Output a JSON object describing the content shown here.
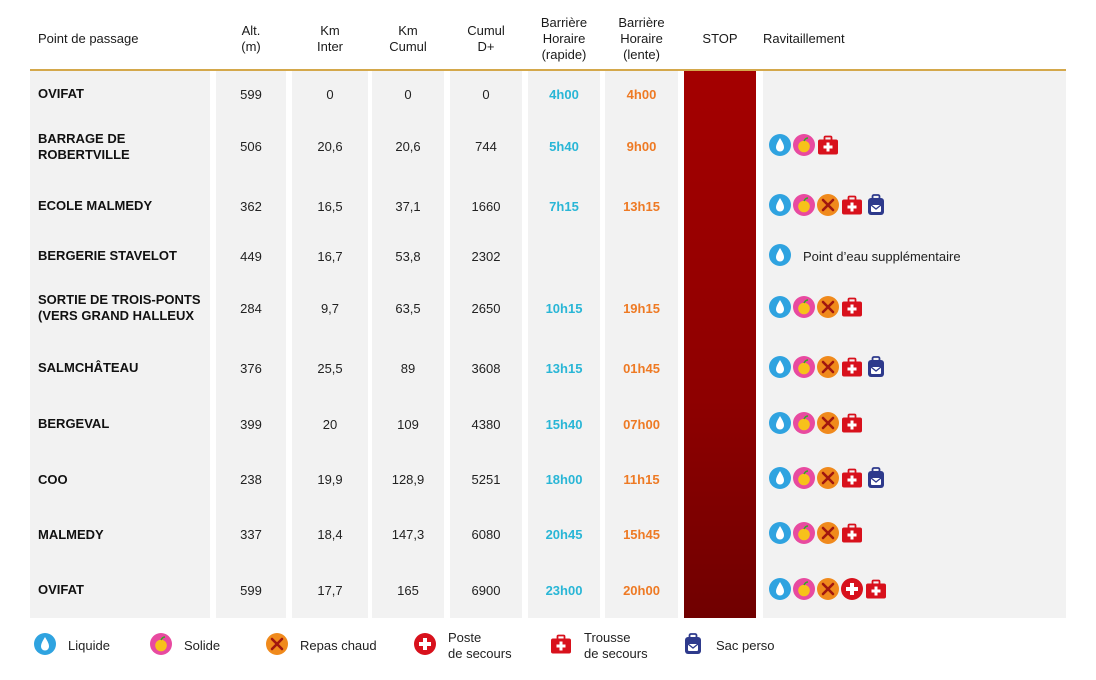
{
  "headers": {
    "point": "Point de passage",
    "alt": "Alt.\n(m)",
    "km_inter": "Km\nInter",
    "km_cumul": "Km\nCumul",
    "cumul_d": "Cumul\nD+",
    "barriere_rapide": "Barrière\nHoraire\n(rapide)",
    "barriere_lente": "Barrière\nHoraire\n(lente)",
    "stop": "STOP",
    "ravitaillement": "Ravitaillement"
  },
  "rows": [
    {
      "name": "OVIFAT",
      "alt": "599",
      "km_inter": "0",
      "km_cumul": "0",
      "cumul_d": "0",
      "rapide": "4h00",
      "lente": "4h00",
      "icons": [],
      "extra": ""
    },
    {
      "name": "BARRAGE DE\nROBERTVILLE",
      "alt": "506",
      "km_inter": "20,6",
      "km_cumul": "20,6",
      "cumul_d": "744",
      "rapide": "5h40",
      "lente": "9h00",
      "icons": [
        "liquide",
        "solide",
        "trousse"
      ],
      "extra": ""
    },
    {
      "name": "ECOLE MALMEDY",
      "alt": "362",
      "km_inter": "16,5",
      "km_cumul": "37,1",
      "cumul_d": "1660",
      "rapide": "7h15",
      "lente": "13h15",
      "icons": [
        "liquide",
        "solide",
        "repas",
        "trousse",
        "sac"
      ],
      "extra": ""
    },
    {
      "name": "BERGERIE STAVELOT",
      "alt": "449",
      "km_inter": "16,7",
      "km_cumul": "53,8",
      "cumul_d": "2302",
      "rapide": "",
      "lente": "",
      "icons": [
        "liquide"
      ],
      "extra": "Point d’eau supplémentaire"
    },
    {
      "name": "SORTIE DE TROIS-PONTS\n(VERS GRAND HALLEUX",
      "alt": "284",
      "km_inter": "9,7",
      "km_cumul": "63,5",
      "cumul_d": "2650",
      "rapide": "10h15",
      "lente": "19h15",
      "icons": [
        "liquide",
        "solide",
        "repas",
        "trousse"
      ],
      "extra": ""
    },
    {
      "name": "SALMCHÂTEAU",
      "alt": "376",
      "km_inter": "25,5",
      "km_cumul": "89",
      "cumul_d": "3608",
      "rapide": "13h15",
      "lente": "01h45",
      "icons": [
        "liquide",
        "solide",
        "repas",
        "trousse",
        "sac"
      ],
      "extra": ""
    },
    {
      "name": "BERGEVAL",
      "alt": "399",
      "km_inter": "20",
      "km_cumul": "109",
      "cumul_d": "4380",
      "rapide": "15h40",
      "lente": "07h00",
      "icons": [
        "liquide",
        "solide",
        "repas",
        "trousse"
      ],
      "extra": ""
    },
    {
      "name": "COO",
      "alt": "238",
      "km_inter": "19,9",
      "km_cumul": "128,9",
      "cumul_d": "5251",
      "rapide": "18h00",
      "lente": "11h15",
      "icons": [
        "liquide",
        "solide",
        "repas",
        "trousse",
        "sac"
      ],
      "extra": ""
    },
    {
      "name": "MALMEDY",
      "alt": "337",
      "km_inter": "18,4",
      "km_cumul": "147,3",
      "cumul_d": "6080",
      "rapide": "20h45",
      "lente": "15h45",
      "icons": [
        "liquide",
        "solide",
        "repas",
        "trousse"
      ],
      "extra": ""
    },
    {
      "name": "OVIFAT",
      "alt": "599",
      "km_inter": "17,7",
      "km_cumul": "165",
      "cumul_d": "6900",
      "rapide": "23h00",
      "lente": "20h00",
      "icons": [
        "liquide",
        "solide",
        "repas",
        "poste",
        "trousse"
      ],
      "extra": ""
    }
  ],
  "legend": [
    {
      "icon": "liquide",
      "label": "Liquide"
    },
    {
      "icon": "solide",
      "label": "Solide"
    },
    {
      "icon": "repas",
      "label": "Repas chaud"
    },
    {
      "icon": "poste",
      "label": "Poste\nde secours"
    },
    {
      "icon": "trousse",
      "label": "Trousse\nde secours"
    },
    {
      "icon": "sac",
      "label": "Sac perso"
    }
  ],
  "colors": {
    "rapide": "#29b6d6",
    "lente": "#ee7a24",
    "stop": "#a40000",
    "rule": "#d4a84b",
    "liquide": "#2fa3e0",
    "solide": "#e84aa0",
    "repas": "#f08a1c",
    "secours": "#d8111c",
    "sac": "#2e3a8c"
  }
}
